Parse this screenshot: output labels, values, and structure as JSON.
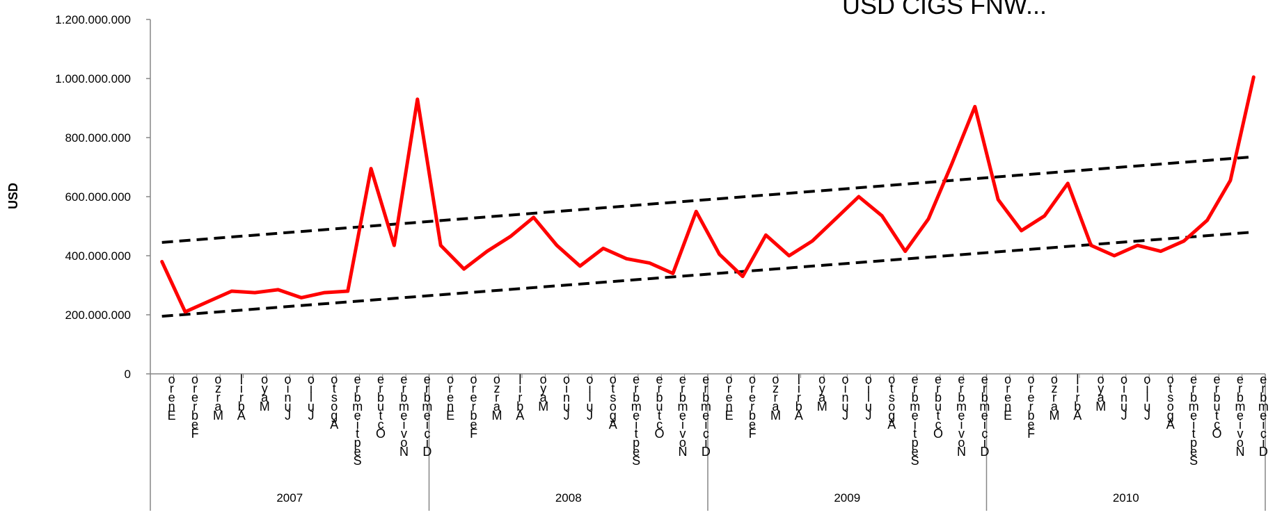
{
  "chart_data": {
    "type": "line",
    "title": "USD CIGS FNW...",
    "ylabel": "USD",
    "ylim": [
      0,
      1200000000
    ],
    "y_ticks": [
      0,
      200000000,
      400000000,
      600000000,
      800000000,
      1000000000,
      1200000000
    ],
    "y_tick_labels": [
      "0",
      "200.000.000",
      "400.000.000",
      "600.000.000",
      "800.000.000",
      "1.000.000.000",
      "1.200.000.000"
    ],
    "grid": false,
    "legend": "none",
    "months": [
      "Enero",
      "Febrero",
      "Marzo",
      "Abril",
      "Mayo",
      "Junio",
      "Julio",
      "Agosto",
      "Septiembre",
      "Octubre",
      "Noviembre",
      "Diciembre"
    ],
    "years": [
      "2007",
      "2008",
      "2009",
      "2010"
    ],
    "series": [
      {
        "color": "#ff0000",
        "style": "solid",
        "values": [
          380000000,
          210000000,
          245000000,
          280000000,
          275000000,
          285000000,
          258000000,
          275000000,
          280000000,
          695000000,
          435000000,
          930000000,
          435000000,
          355000000,
          415000000,
          465000000,
          530000000,
          435000000,
          365000000,
          425000000,
          390000000,
          375000000,
          340000000,
          550000000,
          405000000,
          330000000,
          470000000,
          400000000,
          450000000,
          525000000,
          600000000,
          535000000,
          415000000,
          525000000,
          710000000,
          905000000,
          590000000,
          485000000,
          535000000,
          645000000,
          435000000,
          400000000,
          435000000,
          415000000,
          450000000,
          520000000,
          655000000,
          1005000000
        ]
      },
      {
        "color": "#000000",
        "style": "dashed",
        "values_linear": [
          445000000,
          735000000
        ]
      },
      {
        "color": "#000000",
        "style": "dashed",
        "values_linear": [
          195000000,
          480000000
        ]
      }
    ]
  }
}
